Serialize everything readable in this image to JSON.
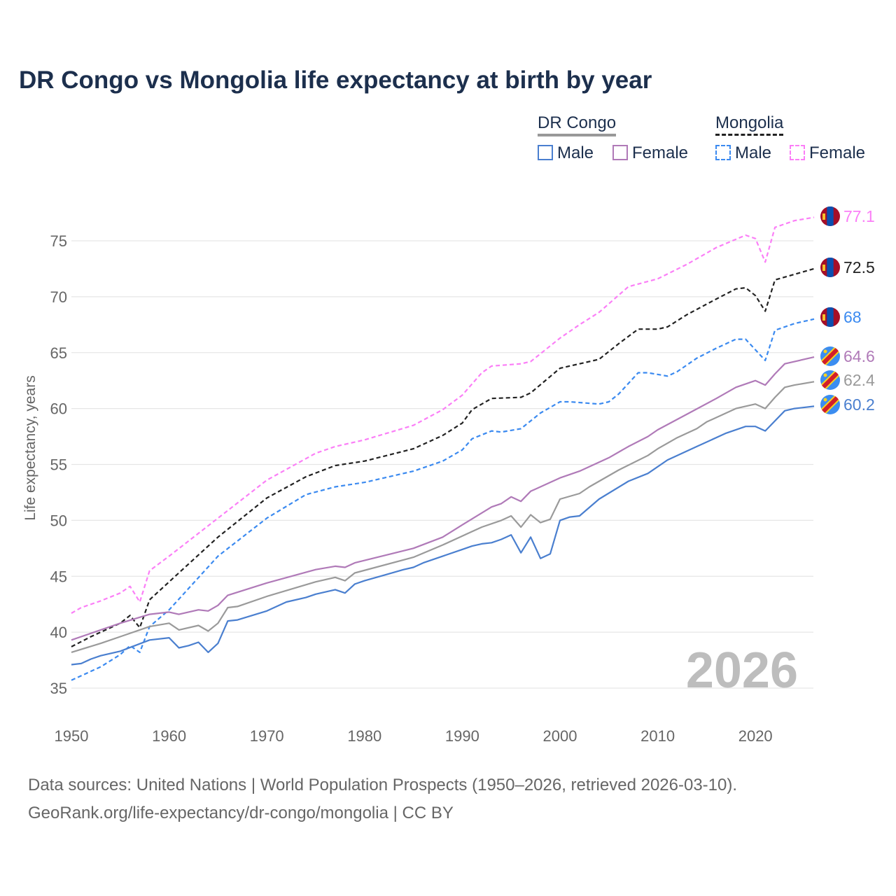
{
  "chart_data": {
    "type": "line",
    "title": "DR Congo vs Mongolia life expectancy at birth by year",
    "xlabel": "",
    "ylabel": "Life expectancy, years",
    "xlim": [
      1950,
      2026
    ],
    "ylim": [
      33,
      78
    ],
    "xticks": [
      1950,
      1960,
      1970,
      1980,
      1990,
      2000,
      2010,
      2020
    ],
    "yticks": [
      35,
      40,
      45,
      50,
      55,
      60,
      65,
      70,
      75
    ],
    "year_label": "2026",
    "legend": {
      "placement": "top-right",
      "groups": [
        {
          "name": "DR Congo",
          "items": [
            "Male",
            "Female"
          ]
        },
        {
          "name": "Mongolia",
          "items": [
            "Male",
            "Female"
          ]
        }
      ]
    },
    "series": [
      {
        "name": "Mongolia Female",
        "country": "Mongolia",
        "color": "#fb7ff7",
        "dash": true,
        "end_label": "77.1",
        "x": [
          1950,
          1951,
          1953,
          1955,
          1956,
          1957,
          1958,
          1960,
          1965,
          1970,
          1975,
          1977,
          1980,
          1985,
          1988,
          1990,
          1992,
          1993,
          1996,
          1997,
          2000,
          2002,
          2004,
          2007,
          2010,
          2013,
          2016,
          2019,
          2020,
          2021,
          2022,
          2024,
          2026
        ],
        "y": [
          41.7,
          42.2,
          42.8,
          43.5,
          44.1,
          42.7,
          45.5,
          46.8,
          50.2,
          53.6,
          56.0,
          56.6,
          57.2,
          58.5,
          59.9,
          61.2,
          63.2,
          63.8,
          64.0,
          64.2,
          66.3,
          67.5,
          68.6,
          70.9,
          71.6,
          72.9,
          74.4,
          75.5,
          75.2,
          73.1,
          76.2,
          76.8,
          77.1
        ]
      },
      {
        "name": "Mongolia",
        "country": "Mongolia",
        "color": "#222222",
        "dash": true,
        "end_label": "72.5",
        "x": [
          1950,
          1952,
          1955,
          1956,
          1957,
          1958,
          1960,
          1965,
          1970,
          1974,
          1977,
          1980,
          1985,
          1988,
          1990,
          1991,
          1993,
          1996,
          1997,
          2000,
          2002,
          2004,
          2006,
          2008,
          2010,
          2011,
          2013,
          2016,
          2018,
          2019,
          2020,
          2021,
          2022,
          2024,
          2026
        ],
        "y": [
          38.7,
          39.6,
          40.8,
          41.5,
          40.4,
          42.9,
          44.5,
          48.5,
          52.0,
          53.9,
          54.9,
          55.3,
          56.4,
          57.6,
          58.7,
          59.9,
          60.9,
          61.0,
          61.4,
          63.6,
          64.0,
          64.4,
          65.8,
          67.1,
          67.1,
          67.3,
          68.4,
          69.8,
          70.7,
          70.8,
          70.1,
          68.7,
          71.5,
          72.0,
          72.5
        ]
      },
      {
        "name": "Mongolia Male",
        "country": "Mongolia",
        "color": "#3b8af0",
        "dash": true,
        "end_label": "68",
        "x": [
          1950,
          1953,
          1955,
          1956,
          1957,
          1958,
          1960,
          1965,
          1970,
          1974,
          1977,
          1980,
          1985,
          1988,
          1990,
          1991,
          1993,
          1994,
          1996,
          1998,
          2000,
          2001,
          2004,
          2005,
          2006,
          2008,
          2009,
          2011,
          2012,
          2014,
          2016,
          2018,
          2019,
          2021,
          2022,
          2024,
          2026
        ],
        "y": [
          35.7,
          36.9,
          38.0,
          38.8,
          38.2,
          40.5,
          42.0,
          46.8,
          50.2,
          52.3,
          53.0,
          53.4,
          54.4,
          55.3,
          56.3,
          57.3,
          58.0,
          57.9,
          58.2,
          59.6,
          60.6,
          60.6,
          60.4,
          60.6,
          61.3,
          63.2,
          63.2,
          62.9,
          63.3,
          64.5,
          65.4,
          66.2,
          66.2,
          64.3,
          67.0,
          67.6,
          68.0
        ]
      },
      {
        "name": "DR Congo Female",
        "country": "DR Congo",
        "color": "#b07ab8",
        "dash": false,
        "end_label": "64.6",
        "x": [
          1950,
          1955,
          1958,
          1960,
          1961,
          1963,
          1964,
          1965,
          1966,
          1970,
          1975,
          1977,
          1978,
          1979,
          1985,
          1988,
          1990,
          1993,
          1994,
          1995,
          1996,
          1997,
          2000,
          2002,
          2005,
          2007,
          2009,
          2010,
          2013,
          2016,
          2018,
          2020,
          2021,
          2022,
          2023,
          2026
        ],
        "y": [
          39.3,
          40.8,
          41.6,
          41.8,
          41.6,
          42.0,
          41.9,
          42.4,
          43.3,
          44.4,
          45.6,
          45.9,
          45.8,
          46.2,
          47.5,
          48.5,
          49.6,
          51.2,
          51.5,
          52.1,
          51.7,
          52.6,
          53.8,
          54.4,
          55.6,
          56.6,
          57.5,
          58.1,
          59.5,
          60.9,
          61.9,
          62.5,
          62.1,
          63.1,
          64.0,
          64.6
        ]
      },
      {
        "name": "DR Congo",
        "country": "DR Congo",
        "color": "#9a9a9a",
        "dash": false,
        "end_label": "62.4",
        "x": [
          1950,
          1953,
          1955,
          1958,
          1960,
          1961,
          1963,
          1964,
          1965,
          1966,
          1967,
          1970,
          1975,
          1977,
          1978,
          1979,
          1985,
          1988,
          1990,
          1992,
          1994,
          1995,
          1996,
          1997,
          1998,
          1999,
          2000,
          2002,
          2003,
          2006,
          2009,
          2010,
          2012,
          2014,
          2015,
          2018,
          2020,
          2021,
          2022,
          2023,
          2024,
          2026
        ],
        "y": [
          38.2,
          39.0,
          39.6,
          40.5,
          40.8,
          40.2,
          40.6,
          40.1,
          40.8,
          42.2,
          42.3,
          43.2,
          44.5,
          44.9,
          44.6,
          45.3,
          46.7,
          47.8,
          48.6,
          49.4,
          50.0,
          50.4,
          49.4,
          50.5,
          49.8,
          50.1,
          51.9,
          52.4,
          53.0,
          54.5,
          55.8,
          56.4,
          57.4,
          58.2,
          58.8,
          60.0,
          60.4,
          60.0,
          61.0,
          61.9,
          62.1,
          62.4
        ]
      },
      {
        "name": "DR Congo Male",
        "country": "DR Congo",
        "color": "#4a7fcf",
        "dash": false,
        "end_label": "60.2",
        "x": [
          1950,
          1951,
          1952,
          1953,
          1955,
          1958,
          1960,
          1961,
          1962,
          1963,
          1964,
          1965,
          1966,
          1967,
          1970,
          1972,
          1974,
          1975,
          1977,
          1978,
          1979,
          1980,
          1982,
          1984,
          1985,
          1986,
          1990,
          1991,
          1992,
          1993,
          1994,
          1995,
          1996,
          1997,
          1998,
          1999,
          2000,
          2001,
          2002,
          2004,
          2007,
          2009,
          2011,
          2014,
          2017,
          2019,
          2020,
          2021,
          2023,
          2024,
          2026
        ],
        "y": [
          37.1,
          37.2,
          37.6,
          37.9,
          38.3,
          39.3,
          39.5,
          38.6,
          38.8,
          39.1,
          38.2,
          39.0,
          41.0,
          41.1,
          41.9,
          42.7,
          43.1,
          43.4,
          43.8,
          43.5,
          44.3,
          44.6,
          45.1,
          45.6,
          45.8,
          46.2,
          47.4,
          47.7,
          47.9,
          48.0,
          48.3,
          48.7,
          47.1,
          48.5,
          46.6,
          47.0,
          50.0,
          50.3,
          50.4,
          51.9,
          53.5,
          54.2,
          55.4,
          56.6,
          57.8,
          58.4,
          58.4,
          58.0,
          59.8,
          60.0,
          60.2
        ]
      }
    ]
  },
  "footer": {
    "line1": "Data sources: United Nations | World Population Prospects (1950–2026, retrieved 2026-03-10).",
    "line2": "GeoRank.org/life-expectancy/dr-congo/mongolia | CC BY"
  }
}
